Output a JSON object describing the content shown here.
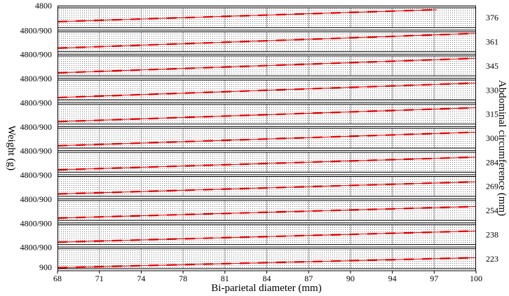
{
  "chart_data": {
    "type": "line",
    "xlabel": "Bi-parietal diameter (mm)",
    "ylabel": "Weight (g)",
    "y2label": "Abdominal circumference (mm)",
    "x_ticks": [
      "68",
      "71",
      "74",
      "78",
      "81",
      "84",
      "87",
      "90",
      "94",
      "97",
      "100"
    ],
    "xlim": [
      68,
      100
    ],
    "grid": true,
    "line_color": "#e00000",
    "top_label": "4800",
    "bottom_label": "900",
    "band_left_label": "4800/900",
    "panels": [
      {
        "ac": "376",
        "x": [
          68,
          97
        ],
        "y": [
          0.3,
          0.9
        ]
      },
      {
        "ac": "361",
        "x": [
          68,
          100
        ],
        "y": [
          0.18,
          0.92
        ]
      },
      {
        "ac": "345",
        "x": [
          68,
          100
        ],
        "y": [
          0.15,
          0.88
        ]
      },
      {
        "ac": "330",
        "x": [
          68,
          100
        ],
        "y": [
          0.12,
          0.85
        ]
      },
      {
        "ac": "315",
        "x": [
          68,
          100
        ],
        "y": [
          0.12,
          0.82
        ]
      },
      {
        "ac": "300",
        "x": [
          68,
          100
        ],
        "y": [
          0.12,
          0.8
        ]
      },
      {
        "ac": "284",
        "x": [
          68,
          100
        ],
        "y": [
          0.12,
          0.76
        ]
      },
      {
        "ac": "269",
        "x": [
          68,
          100
        ],
        "y": [
          0.12,
          0.73
        ]
      },
      {
        "ac": "254",
        "x": [
          68,
          100
        ],
        "y": [
          0.12,
          0.7
        ]
      },
      {
        "ac": "238",
        "x": [
          68,
          100
        ],
        "y": [
          0.12,
          0.68
        ]
      },
      {
        "ac": "223",
        "x": [
          68,
          100
        ],
        "y": [
          0.05,
          0.55
        ]
      }
    ]
  }
}
